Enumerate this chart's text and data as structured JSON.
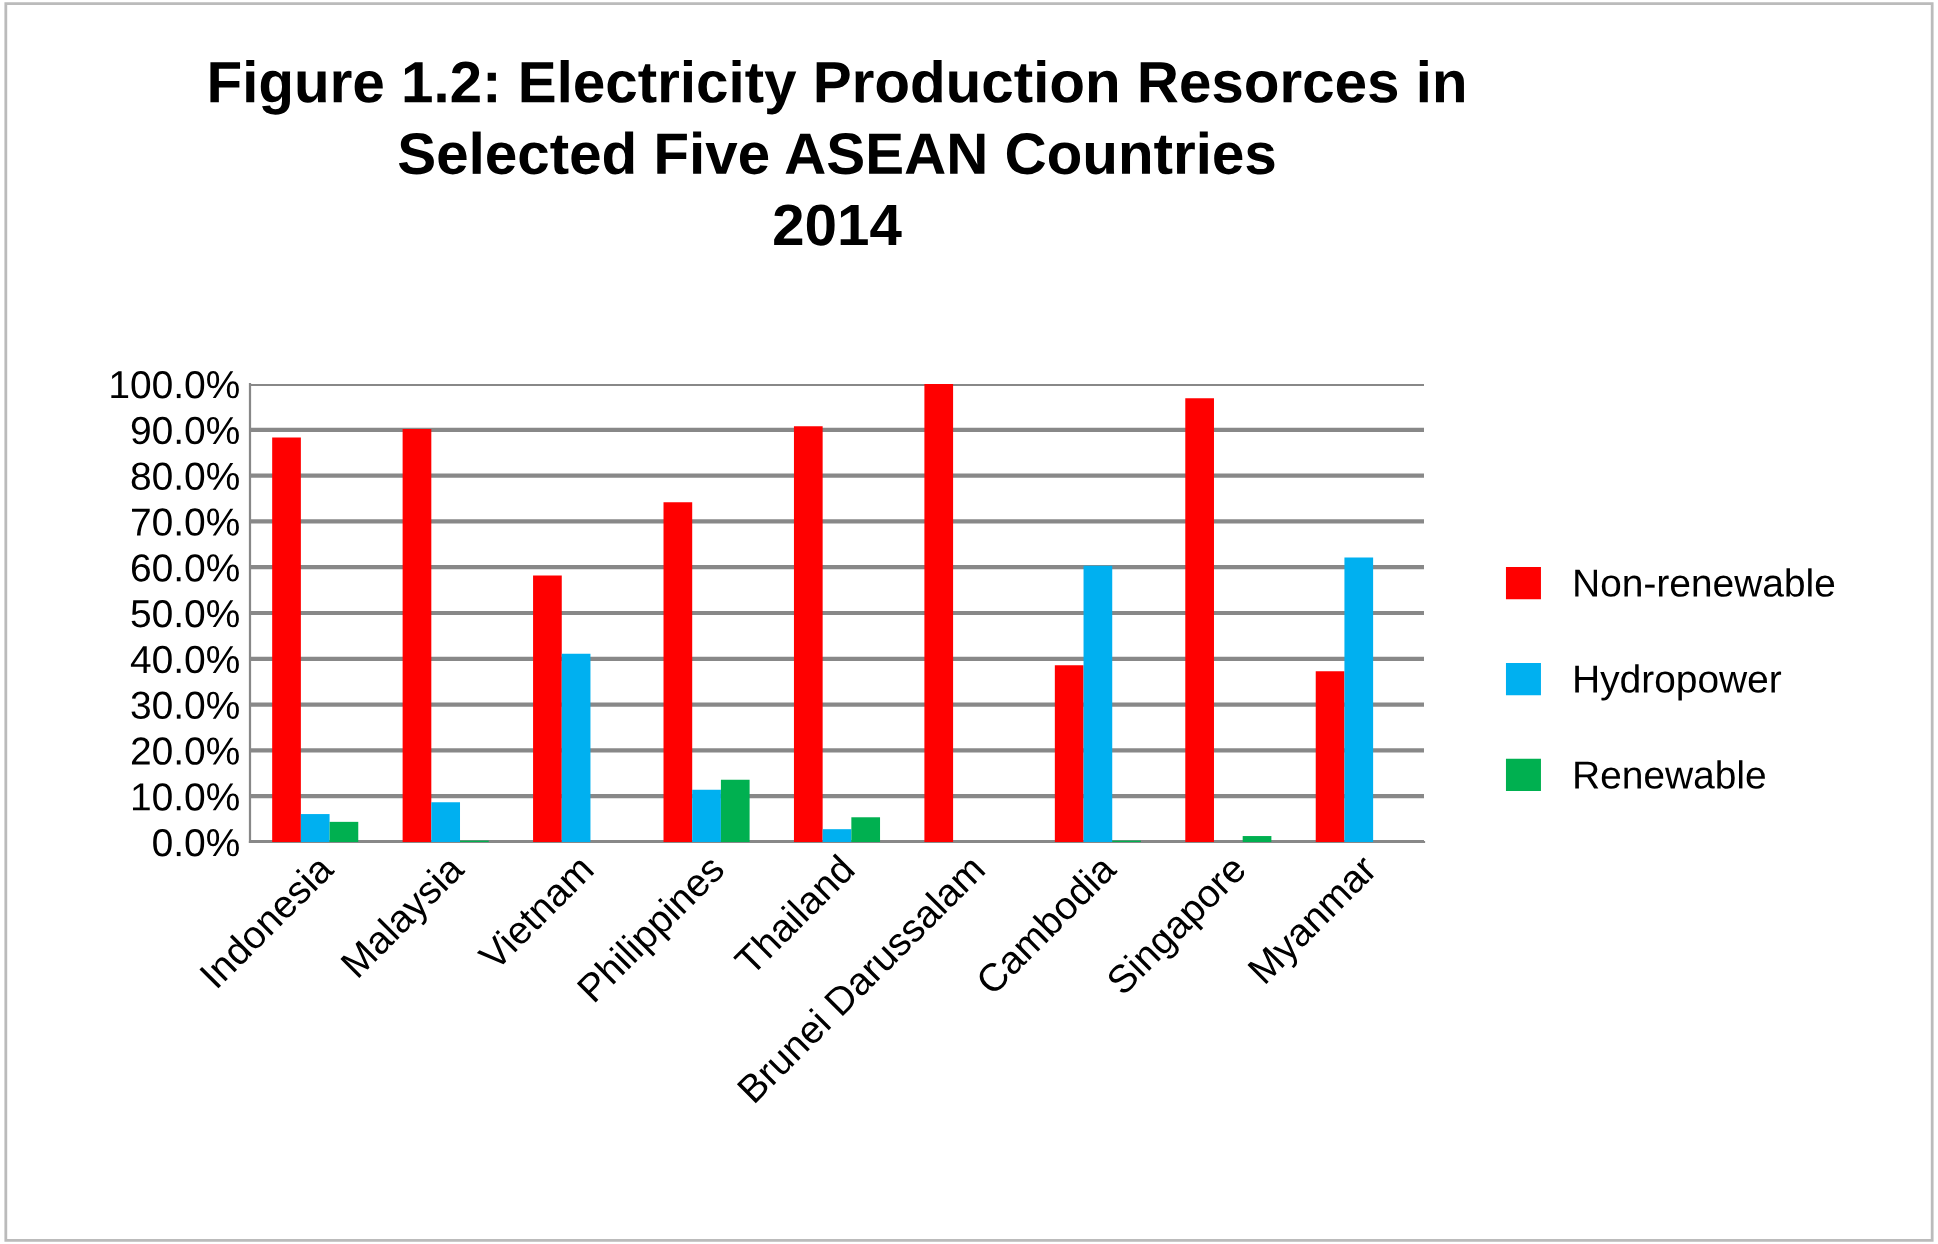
{
  "chart_data": {
    "type": "bar",
    "title": "Figure 1.2: Electricity Production Resorces in\nSelected Five ASEAN Countries\n2014",
    "categories": [
      "Indonesia",
      "Malaysia",
      "Vietnam",
      "Philippines",
      "Thailand",
      "Brunei Darussalam",
      "Cambodia",
      "Singapore",
      "Myanmar"
    ],
    "series": [
      {
        "name": "Non-renewable",
        "color": "#ff0000",
        "values": [
          88.3,
          90.2,
          58.2,
          74.2,
          90.8,
          100,
          38.6,
          96.9,
          37.3
        ]
      },
      {
        "name": "Hydropower",
        "color": "#00b0f0",
        "values": [
          6.1,
          8.7,
          41.1,
          11.4,
          2.8,
          0,
          60.3,
          0,
          62.1
        ]
      },
      {
        "name": "Renewable",
        "color": "#00b050",
        "values": [
          4.4,
          0.3,
          0,
          13.6,
          5.4,
          0,
          0.3,
          1.3,
          0
        ]
      }
    ],
    "ylim": [
      0,
      100
    ],
    "yticks": [
      {
        "value": 0,
        "label": "0.0%"
      },
      {
        "value": 10,
        "label": "10.0%"
      },
      {
        "value": 20,
        "label": "20.0%"
      },
      {
        "value": 30,
        "label": "30.0%"
      },
      {
        "value": 40,
        "label": "40.0%"
      },
      {
        "value": 50,
        "label": "50.0%"
      },
      {
        "value": 60,
        "label": "60.0%"
      },
      {
        "value": 70,
        "label": "70.0%"
      },
      {
        "value": 80,
        "label": "80.0%"
      },
      {
        "value": 90,
        "label": "90.0%"
      },
      {
        "value": 100,
        "label": "100.0%"
      }
    ],
    "grid": "y",
    "legend": "right"
  }
}
